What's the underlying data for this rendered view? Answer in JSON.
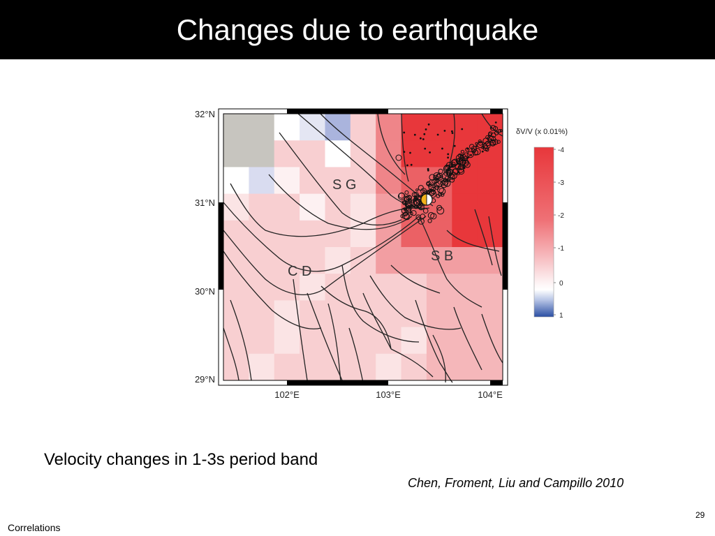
{
  "slide": {
    "title": "Changes due to earthquake",
    "caption": "Velocity changes in 1-3s period band",
    "citation": "Chen, Froment, Liu and Campillo 2010",
    "page_number": "29",
    "footer": "Correlations"
  },
  "map": {
    "lat_labels": [
      "32°N",
      "31°N",
      "30°N",
      "29°N"
    ],
    "lon_labels": [
      "102°E",
      "103°E",
      "104°E"
    ],
    "regions": [
      "S G",
      "S B",
      "C D"
    ],
    "colorbar": {
      "title": "δV/V (x 0.01%)",
      "ticks": [
        "-4",
        "-3",
        "-2",
        "-1",
        "0",
        "1"
      ]
    }
  },
  "colors": {
    "title_bar": "#000000",
    "strong_decrease": "#e8373b",
    "increase": "#2b4fa3"
  }
}
